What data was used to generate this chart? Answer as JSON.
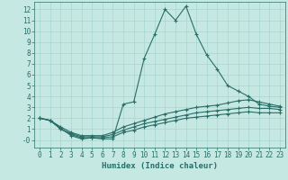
{
  "xlabel": "Humidex (Indice chaleur)",
  "bg_color": "#c5e8e2",
  "grid_color": "#a8d4ce",
  "line_color": "#2a6e68",
  "xlim": [
    -0.5,
    23.5
  ],
  "ylim": [
    -0.7,
    12.7
  ],
  "xticks": [
    0,
    1,
    2,
    3,
    4,
    5,
    6,
    7,
    8,
    9,
    10,
    11,
    12,
    13,
    14,
    15,
    16,
    17,
    18,
    19,
    20,
    21,
    22,
    23
  ],
  "yticks": [
    0,
    1,
    2,
    3,
    4,
    5,
    6,
    7,
    8,
    9,
    10,
    11,
    12
  ],
  "ytick_labels": [
    "-0",
    "1",
    "2",
    "3",
    "4",
    "5",
    "6",
    "7",
    "8",
    "9",
    "10",
    "11",
    "12"
  ],
  "series": [
    {
      "x": [
        0,
        1,
        2,
        3,
        4,
        5,
        6,
        7,
        8,
        9,
        10,
        11,
        12,
        13,
        14,
        15,
        16,
        17,
        18,
        19,
        20,
        21,
        22,
        23
      ],
      "y": [
        2.0,
        1.8,
        1.1,
        0.4,
        0.1,
        0.2,
        0.1,
        0.1,
        3.3,
        3.5,
        7.5,
        9.7,
        12.0,
        11.0,
        12.3,
        9.7,
        7.8,
        6.5,
        5.0,
        4.5,
        4.0,
        3.3,
        3.1,
        3.0
      ]
    },
    {
      "x": [
        0,
        1,
        2,
        3,
        4,
        5,
        6,
        7,
        8,
        9,
        10,
        11,
        12,
        13,
        14,
        15,
        16,
        17,
        18,
        19,
        20,
        21,
        22,
        23
      ],
      "y": [
        2.0,
        1.8,
        1.2,
        0.7,
        0.4,
        0.4,
        0.4,
        0.7,
        1.2,
        1.5,
        1.8,
        2.1,
        2.4,
        2.6,
        2.8,
        3.0,
        3.1,
        3.2,
        3.4,
        3.6,
        3.7,
        3.5,
        3.3,
        3.1
      ]
    },
    {
      "x": [
        0,
        1,
        2,
        3,
        4,
        5,
        6,
        7,
        8,
        9,
        10,
        11,
        12,
        13,
        14,
        15,
        16,
        17,
        18,
        19,
        20,
        21,
        22,
        23
      ],
      "y": [
        2.0,
        1.8,
        1.0,
        0.6,
        0.3,
        0.3,
        0.3,
        0.5,
        0.9,
        1.2,
        1.5,
        1.7,
        1.9,
        2.1,
        2.3,
        2.5,
        2.6,
        2.7,
        2.8,
        2.9,
        3.0,
        2.9,
        2.9,
        2.8
      ]
    },
    {
      "x": [
        0,
        1,
        2,
        3,
        4,
        5,
        6,
        7,
        8,
        9,
        10,
        11,
        12,
        13,
        14,
        15,
        16,
        17,
        18,
        19,
        20,
        21,
        22,
        23
      ],
      "y": [
        2.0,
        1.8,
        1.0,
        0.5,
        0.2,
        0.2,
        0.2,
        0.3,
        0.7,
        0.9,
        1.2,
        1.4,
        1.6,
        1.8,
        2.0,
        2.1,
        2.2,
        2.3,
        2.4,
        2.5,
        2.6,
        2.5,
        2.5,
        2.5
      ]
    }
  ],
  "marker": "+",
  "markersize": 3,
  "linewidth": 0.8,
  "tick_fontsize": 5.5,
  "xlabel_fontsize": 6.5
}
